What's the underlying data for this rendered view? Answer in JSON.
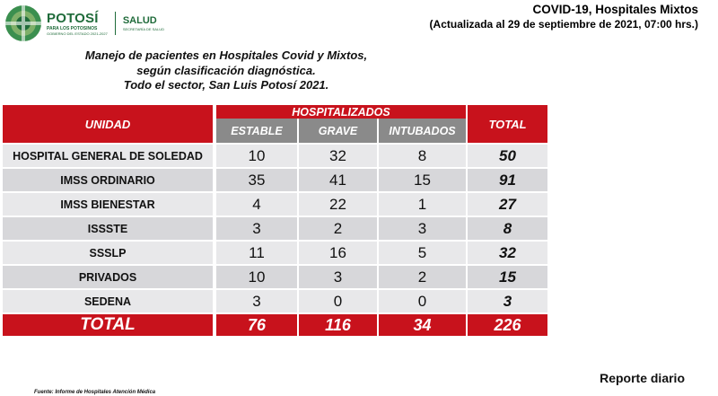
{
  "logo": {
    "brand": "POTOSÍ",
    "tagline": "PARA LOS POTOSINOS",
    "subtag": "GOBIERNO DEL ESTADO 2021-2027",
    "salud": "SALUD",
    "salud_sub": "SECRETARÍA DE SALUD"
  },
  "header": {
    "title": "COVID-19, Hospitales Mixtos",
    "updated": "(Actualizada al 29 de septiembre de 2021, 07:00 hrs.)"
  },
  "subtitle": {
    "line1": "Manejo de pacientes en Hospitales Covid y Mixtos,",
    "line2": "según clasificación diagnóstica.",
    "line3": "Todo el sector, San Luis Potosí 2021."
  },
  "table": {
    "col_unidad": "UNIDAD",
    "col_group": "HOSPITALIZADOS",
    "col_estable": "ESTABLE",
    "col_grave": "GRAVE",
    "col_intubados": "INTUBADOS",
    "col_total": "TOTAL",
    "rows": [
      {
        "unidad": "HOSPITAL GENERAL DE SOLEDAD",
        "estable": "10",
        "grave": "32",
        "intubados": "8",
        "total": "50"
      },
      {
        "unidad": "IMSS ORDINARIO",
        "estable": "35",
        "grave": "41",
        "intubados": "15",
        "total": "91"
      },
      {
        "unidad": "IMSS BIENESTAR",
        "estable": "4",
        "grave": "22",
        "intubados": "1",
        "total": "27"
      },
      {
        "unidad": "ISSSTE",
        "estable": "3",
        "grave": "2",
        "intubados": "3",
        "total": "8"
      },
      {
        "unidad": "SSSLP",
        "estable": "11",
        "grave": "16",
        "intubados": "5",
        "total": "32"
      },
      {
        "unidad": "PRIVADOS",
        "estable": "10",
        "grave": "3",
        "intubados": "2",
        "total": "15"
      },
      {
        "unidad": "SEDENA",
        "estable": "3",
        "grave": "0",
        "intubados": "0",
        "total": "3"
      }
    ],
    "total_row": {
      "label": "TOTAL",
      "estable": "76",
      "grave": "116",
      "intubados": "34",
      "total": "226"
    }
  },
  "footer": {
    "reporte": "Reporte diario",
    "fuente": "Fuente: Informe de Hospitales Atención Médica"
  },
  "colors": {
    "header_red": "#c8121c",
    "header_gray": "#8a8a8a",
    "brand_green": "#1f6b3a"
  }
}
